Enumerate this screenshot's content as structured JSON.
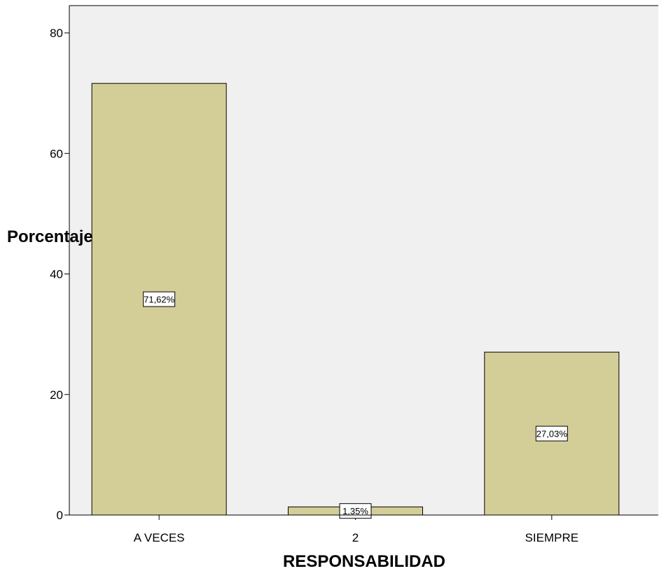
{
  "chart_data": {
    "type": "bar",
    "categories": [
      "A VECES",
      "2",
      "SIEMPRE"
    ],
    "values": [
      71.62,
      1.35,
      27.03
    ],
    "data_labels": [
      "71,62%",
      "1,35%",
      "27,03%"
    ],
    "xlabel": "RESPONSABILIDAD",
    "ylabel": "Porcentaje",
    "ylim": [
      0,
      80
    ],
    "yticks": [
      0,
      20,
      40,
      60,
      80
    ],
    "grid": false,
    "colors": {
      "plot_background": "#f0f0f0",
      "bar_fill": "#d3ce97",
      "bar_stroke": "#000000",
      "label_box_fill": "#ffffff"
    }
  }
}
